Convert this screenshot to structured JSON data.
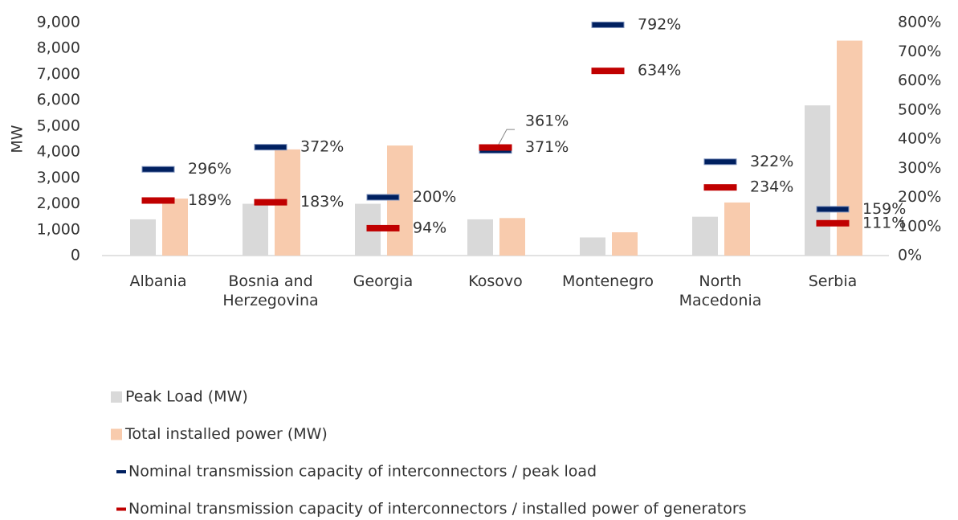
{
  "chart_data": {
    "type": "bar",
    "y_label": "MW",
    "categories": [
      "Albania",
      "Bosnia and Herzegovina",
      "Georgia",
      "Kosovo",
      "Montenegro",
      "North Macedonia",
      "Serbia"
    ],
    "series": [
      {
        "name": "Peak Load (MW)",
        "type": "bar",
        "color": "#d9d9d9",
        "values": [
          1400,
          2000,
          2000,
          1400,
          700,
          1500,
          5800
        ]
      },
      {
        "name": "Total installed power (MW)",
        "type": "bar",
        "color": "#f8cbad",
        "values": [
          2200,
          4100,
          4250,
          1450,
          900,
          2050,
          8300
        ]
      },
      {
        "name": "Nominal transmission capacity of interconnectors / peak load",
        "type": "marker",
        "axis": "y2",
        "color": "#002060",
        "values": [
          296,
          372,
          200,
          361,
          792,
          322,
          159
        ],
        "value_labels": [
          "296%",
          "372%",
          "200%",
          "361%",
          "792%",
          "322%",
          "159%"
        ]
      },
      {
        "name": "Nominal transmission capacity of interconnectors / installed power of generators",
        "type": "marker",
        "axis": "y2",
        "color": "#c00000",
        "values": [
          189,
          183,
          94,
          371,
          634,
          234,
          111
        ],
        "value_labels": [
          "189%",
          "183%",
          "94%",
          "371%",
          "634%",
          "234%",
          "111%"
        ]
      }
    ],
    "ylim": [
      0,
      9000
    ],
    "yticks": [
      0,
      {
        "value": 1000,
        "label": "1,000"
      },
      {
        "value": 2000,
        "label": "2,000"
      },
      {
        "value": 3000,
        "label": "3,000"
      },
      {
        "value": 4000,
        "label": "4,000"
      },
      {
        "value": 5000,
        "label": "5,000"
      },
      {
        "value": 6000,
        "label": "6,000"
      },
      {
        "value": 7000,
        "label": "7,000"
      },
      {
        "value": 8000,
        "label": "8,000"
      },
      {
        "value": 9000,
        "label": "9,000"
      }
    ],
    "y2lim": [
      0,
      800
    ],
    "y2ticks": [
      {
        "value": 0,
        "label": "0%"
      },
      {
        "value": 100,
        "label": "100%"
      },
      {
        "value": 200,
        "label": "200%"
      },
      {
        "value": 300,
        "label": "300%"
      },
      {
        "value": 400,
        "label": "400%"
      },
      {
        "value": 500,
        "label": "500%"
      },
      {
        "value": 600,
        "label": "600%"
      },
      {
        "value": 700,
        "label": "700%"
      },
      {
        "value": 800,
        "label": "800%"
      }
    ],
    "legend": "bottom"
  }
}
